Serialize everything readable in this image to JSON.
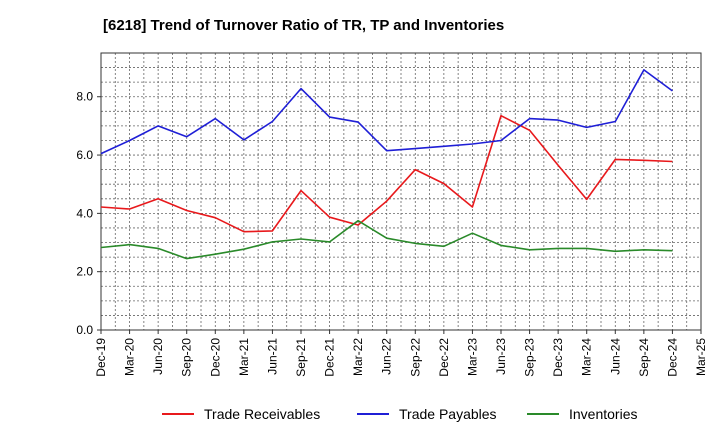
{
  "chart_data": {
    "type": "line",
    "title": "[6218]  Trend of Turnover Ratio of TR, TP and Inventories",
    "xlabel": "",
    "ylabel": "",
    "ylim": [
      0,
      9.5
    ],
    "yticks": [
      "0.0",
      "2.0",
      "4.0",
      "6.0",
      "8.0"
    ],
    "ytick_values": [
      0,
      2,
      4,
      6,
      8
    ],
    "xticks": [
      "Dec-19",
      "Mar-20",
      "Jun-20",
      "Sep-20",
      "Dec-20",
      "Mar-21",
      "Jun-21",
      "Sep-21",
      "Dec-21",
      "Mar-22",
      "Jun-22",
      "Sep-22",
      "Dec-22",
      "Mar-23",
      "Jun-23",
      "Sep-23",
      "Dec-23",
      "Mar-24",
      "Jun-24",
      "Sep-24",
      "Dec-24",
      "Mar-25"
    ],
    "x": [
      "Dec-19",
      "Mar-20",
      "Jun-20",
      "Sep-20",
      "Dec-20",
      "Mar-21",
      "Jun-21",
      "Sep-21",
      "Dec-21",
      "Mar-22",
      "Jun-22",
      "Sep-22",
      "Dec-22",
      "Mar-23",
      "Jun-23",
      "Sep-23",
      "Dec-23",
      "Mar-24",
      "Jun-24",
      "Sep-24",
      "Dec-24"
    ],
    "grid": true,
    "legend_position": "bottom",
    "series": [
      {
        "name": "Trade Receivables",
        "color": "#e8191c",
        "values": [
          4.22,
          4.15,
          4.5,
          4.1,
          3.85,
          3.37,
          3.4,
          4.78,
          3.87,
          3.6,
          4.42,
          5.5,
          5.02,
          4.22,
          7.35,
          6.85,
          5.65,
          4.48,
          5.85,
          5.82,
          5.78
        ]
      },
      {
        "name": "Trade Payables",
        "color": "#1f1fd6",
        "values": [
          6.05,
          6.5,
          7.0,
          6.63,
          7.25,
          6.52,
          7.15,
          8.28,
          7.3,
          7.13,
          6.15,
          6.22,
          6.3,
          6.38,
          6.5,
          7.25,
          7.2,
          6.95,
          7.15,
          8.92,
          8.2
        ]
      },
      {
        "name": "Inventories",
        "color": "#2a8a2a",
        "values": [
          2.83,
          2.93,
          2.8,
          2.45,
          2.6,
          2.77,
          3.02,
          3.12,
          3.02,
          3.75,
          3.15,
          2.97,
          2.87,
          3.32,
          2.9,
          2.75,
          2.8,
          2.8,
          2.7,
          2.75,
          2.72
        ]
      }
    ]
  }
}
